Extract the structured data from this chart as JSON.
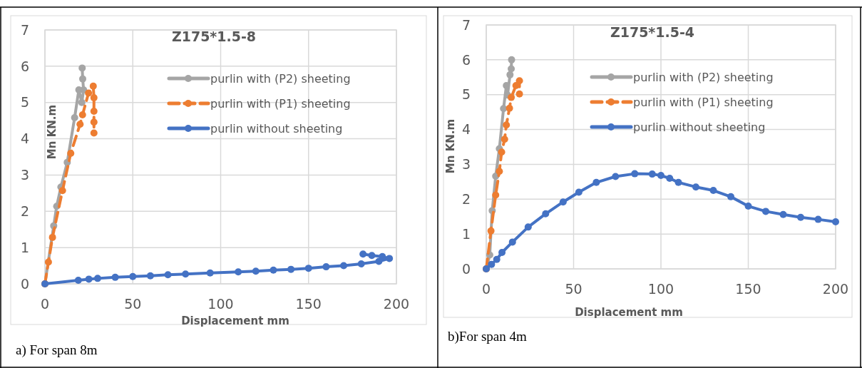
{
  "chart_data": [
    {
      "type": "line",
      "title": "Z175*1.5-8",
      "xlabel": "Displacement mm",
      "ylabel": "Mn KN.m",
      "annotations": [
        "a) For span 8m"
      ],
      "xlim": [
        0,
        200
      ],
      "ylim": [
        0,
        7
      ],
      "xticks": [
        0,
        50,
        100,
        150,
        200
      ],
      "yticks": [
        0,
        1,
        2,
        3,
        4,
        5,
        6,
        7
      ],
      "grid": true,
      "legend": "top right",
      "marker": "circle",
      "series": [
        {
          "name": "purlin with (P2) sheeting",
          "color": "#a5a5a5",
          "line_style": "solid",
          "x": [
            0,
            1,
            3.4,
            5,
            6.7,
            9.1,
            12.7,
            14,
            16.9,
            18,
            19.3,
            21,
            22,
            21.5,
            21.2
          ],
          "values": [
            0,
            null,
            null,
            1.6,
            2.14,
            2.67,
            3.35,
            null,
            4.58,
            null,
            5.35,
            5.0,
            5.35,
            5.65,
            5.95
          ]
        },
        {
          "name": "purlin with (P1) sheeting",
          "color": "#ed7d31",
          "line_style": "dashed",
          "x": [
            0,
            2,
            4.3,
            10,
            14.7,
            20,
            21.4,
            24.8,
            27.5,
            27.9,
            27.9,
            27.9,
            27.9
          ],
          "values": [
            0,
            0.6,
            1.28,
            2.57,
            3.6,
            4.4,
            4.66,
            5.26,
            5.45,
            5.13,
            4.76,
            4.46,
            4.16
          ]
        },
        {
          "name": "purlin without sheeting",
          "color": "#4472c4",
          "line_style": "solid",
          "x": [
            0,
            19,
            25,
            30,
            40,
            50,
            60,
            70,
            80,
            94,
            110,
            120,
            130,
            140,
            150,
            160,
            170,
            180,
            190,
            196,
            192,
            186,
            181
          ],
          "values": [
            0,
            0.1,
            0.13,
            0.15,
            0.18,
            0.2,
            0.22,
            0.25,
            0.27,
            0.3,
            0.33,
            0.35,
            0.38,
            0.4,
            0.43,
            0.47,
            0.5,
            0.55,
            0.62,
            0.7,
            0.75,
            0.78,
            0.82
          ]
        }
      ]
    },
    {
      "type": "line",
      "title": "Z175*1.5-4",
      "xlabel": "Displacement mm",
      "ylabel": "Mn KN.m",
      "annotations": [
        "b)For span 4m"
      ],
      "xlim": [
        0,
        200
      ],
      "ylim": [
        0,
        7
      ],
      "xticks": [
        0,
        50,
        100,
        150,
        200
      ],
      "yticks": [
        0,
        1,
        2,
        3,
        4,
        5,
        6,
        7
      ],
      "grid": true,
      "legend": "top right",
      "marker": "circle",
      "series": [
        {
          "name": "purlin with (P2) sheeting",
          "color": "#a5a5a5",
          "line_style": "solid",
          "x": [
            0,
            2,
            3.4,
            5.4,
            7.5,
            9.9,
            11.5,
            12.2,
            13.6,
            14.3,
            14.5
          ],
          "values": [
            0,
            0.4,
            1.67,
            2.66,
            3.45,
            4.6,
            5.26,
            4.99,
            5.57,
            5.74,
            6.0
          ]
        },
        {
          "name": "purlin with (P1) sheeting",
          "color": "#ed7d31",
          "line_style": "dashed",
          "x": [
            0,
            2.7,
            5.4,
            7.5,
            8.8,
            10.5,
            11.5,
            13.3,
            14.3,
            17,
            19,
            19
          ],
          "values": [
            0,
            1.09,
            2.12,
            2.8,
            3.35,
            3.72,
            4.13,
            4.61,
            4.92,
            5.26,
            5.4,
            5.02
          ]
        },
        {
          "name": "purlin without sheeting",
          "color": "#4472c4",
          "line_style": "solid",
          "x": [
            0,
            3,
            6,
            9,
            15,
            24,
            34,
            44,
            53,
            63,
            74,
            85,
            95,
            100,
            105,
            110,
            120,
            130,
            140,
            150,
            160,
            170,
            180,
            190,
            200
          ],
          "values": [
            0,
            0.13,
            0.27,
            0.47,
            0.77,
            1.2,
            1.58,
            1.92,
            2.2,
            2.48,
            2.65,
            2.73,
            2.72,
            2.68,
            2.6,
            2.48,
            2.35,
            2.25,
            2.07,
            1.8,
            1.65,
            1.56,
            1.48,
            1.42,
            1.35
          ]
        }
      ]
    }
  ]
}
